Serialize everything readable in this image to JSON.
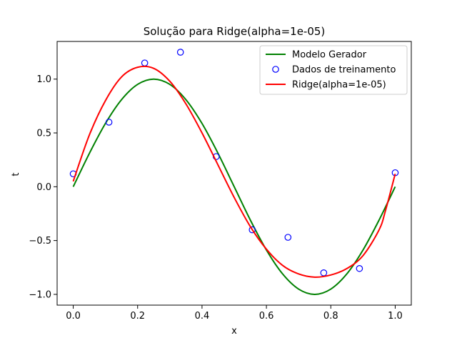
{
  "chart_data": {
    "type": "line",
    "title": "Solução para Ridge(alpha=1e-05)",
    "xlabel": "x",
    "ylabel": "t",
    "xlim": [
      -0.05,
      1.05
    ],
    "ylim": [
      -1.1,
      1.35
    ],
    "xticks": [
      0.0,
      0.2,
      0.4,
      0.6,
      0.8,
      1.0
    ],
    "xtick_labels": [
      "0.0",
      "0.2",
      "0.4",
      "0.6",
      "0.8",
      "1.0"
    ],
    "yticks": [
      -1.0,
      -0.5,
      0.0,
      0.5,
      1.0
    ],
    "ytick_labels": [
      "−1.0",
      "−0.5",
      "0.0",
      "0.5",
      "1.0"
    ],
    "grid": false,
    "legend_position": "top-right",
    "series": [
      {
        "name": "Modelo Gerador",
        "kind": "line",
        "color": "#008000",
        "x": [
          0.0,
          0.05,
          0.1,
          0.15,
          0.2,
          0.25,
          0.3,
          0.35,
          0.4,
          0.45,
          0.5,
          0.55,
          0.6,
          0.65,
          0.7,
          0.75,
          0.8,
          0.85,
          0.9,
          0.95,
          1.0
        ],
        "y": [
          0.0,
          0.309,
          0.588,
          0.809,
          0.951,
          1.0,
          0.951,
          0.809,
          0.588,
          0.309,
          0.0,
          -0.309,
          -0.588,
          -0.809,
          -0.951,
          -1.0,
          -0.951,
          -0.809,
          -0.588,
          -0.309,
          0.0
        ]
      },
      {
        "name": "Dados de treinamento",
        "kind": "scatter",
        "color": "#0000ff",
        "x": [
          0.0,
          0.111,
          0.222,
          0.333,
          0.444,
          0.556,
          0.667,
          0.778,
          0.889,
          1.0
        ],
        "y": [
          0.12,
          0.6,
          1.15,
          1.25,
          0.28,
          -0.4,
          -0.47,
          -0.8,
          -0.76,
          0.13
        ]
      },
      {
        "name": "Ridge(alpha=1e-05)",
        "kind": "line",
        "color": "#ff0000",
        "x": [
          0.0,
          0.05,
          0.1,
          0.15,
          0.2,
          0.25,
          0.3,
          0.35,
          0.4,
          0.45,
          0.5,
          0.55,
          0.6,
          0.65,
          0.7,
          0.75,
          0.8,
          0.85,
          0.9,
          0.95,
          0.97,
          1.0
        ],
        "y": [
          0.05,
          0.48,
          0.8,
          1.02,
          1.11,
          1.1,
          0.98,
          0.77,
          0.5,
          0.2,
          -0.1,
          -0.37,
          -0.58,
          -0.73,
          -0.81,
          -0.84,
          -0.82,
          -0.76,
          -0.64,
          -0.4,
          -0.22,
          0.12
        ]
      }
    ]
  }
}
